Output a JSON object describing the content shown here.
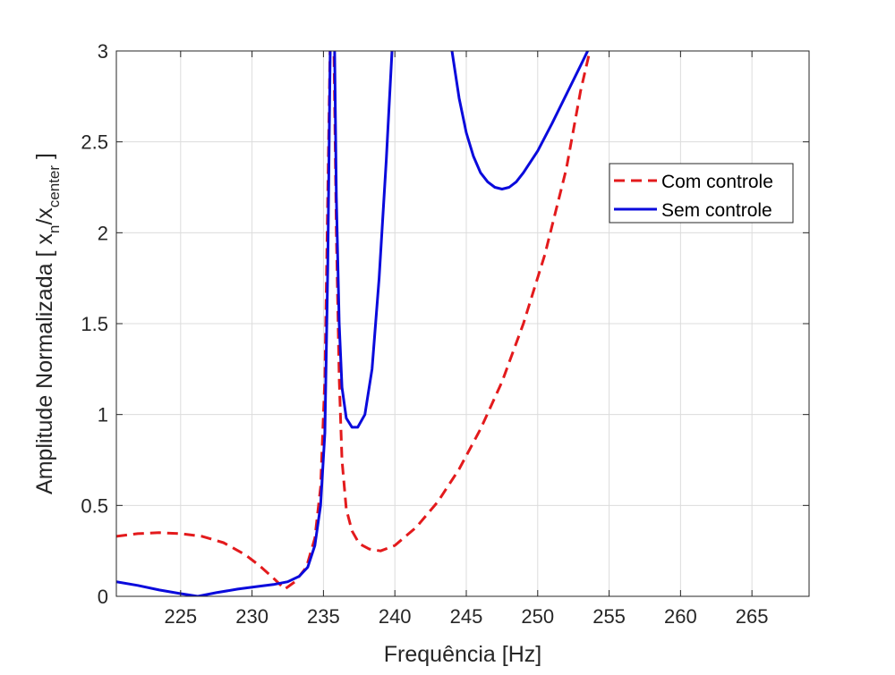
{
  "chart_data": {
    "type": "line",
    "xlabel": "Frequência [Hz]",
    "ylabel_main": "Amplitude Normalizada [ x",
    "ylabel_sub1": "n",
    "ylabel_mid": "/x",
    "ylabel_sub2": "center",
    "ylabel_end": " ]",
    "xlim": [
      220.5,
      269
    ],
    "ylim": [
      0,
      3
    ],
    "xticks": [
      225,
      230,
      235,
      240,
      245,
      250,
      255,
      260,
      265
    ],
    "yticks": [
      0,
      0.5,
      1,
      1.5,
      2,
      2.5,
      3
    ],
    "xtick_labels": [
      "225",
      "230",
      "235",
      "240",
      "245",
      "250",
      "255",
      "260",
      "265"
    ],
    "ytick_labels": [
      "0",
      "0.5",
      "1",
      "1.5",
      "2",
      "2.5",
      "3"
    ],
    "grid": true,
    "legend_position": "top-right",
    "series": [
      {
        "name": "Com controle",
        "color": "#e31a1c",
        "style": "dashed",
        "x": [
          220.5,
          222,
          223.5,
          225,
          226.5,
          228,
          229.5,
          230.5,
          231.5,
          232.3,
          233.0,
          233.8,
          234.4,
          234.8,
          235.1,
          235.3,
          235.5,
          235.7,
          235.9,
          236.1,
          236.3,
          236.6,
          237.0,
          237.5,
          238.2,
          239.0,
          240.0,
          241.5,
          243.0,
          244.5,
          246.0,
          247.5,
          249.0,
          250.5,
          252.0,
          253.0,
          253.8
        ],
        "y": [
          0.33,
          0.345,
          0.35,
          0.345,
          0.33,
          0.295,
          0.23,
          0.17,
          0.1,
          0.04,
          0.08,
          0.16,
          0.32,
          0.6,
          1.2,
          2.2,
          3.2,
          3.2,
          2.0,
          1.2,
          0.75,
          0.48,
          0.36,
          0.29,
          0.26,
          0.25,
          0.28,
          0.38,
          0.52,
          0.7,
          0.92,
          1.18,
          1.5,
          1.88,
          2.35,
          2.78,
          3.05
        ]
      },
      {
        "name": "Sem controle",
        "color": "#0a0adc",
        "style": "solid",
        "x": [
          220.5,
          222,
          223.5,
          225,
          226.2,
          227.5,
          229,
          230.5,
          231.5,
          232.5,
          233.3,
          233.9,
          234.4,
          234.8,
          235.1,
          235.3,
          235.5,
          235.75,
          235.9,
          236.1,
          236.3,
          236.6,
          237.0,
          237.4,
          237.9,
          238.4,
          238.9,
          239.4,
          239.8,
          240.0,
          243.7,
          244,
          244.5,
          245,
          245.5,
          246,
          246.5,
          247,
          247.5,
          248,
          248.5,
          249,
          250,
          251,
          252,
          253,
          253.5
        ],
        "y": [
          0.08,
          0.06,
          0.035,
          0.015,
          0.0,
          0.02,
          0.04,
          0.055,
          0.065,
          0.08,
          0.11,
          0.16,
          0.28,
          0.5,
          0.9,
          1.8,
          3.2,
          3.2,
          2.2,
          1.5,
          1.15,
          0.98,
          0.93,
          0.93,
          1.0,
          1.25,
          1.75,
          2.4,
          3.0,
          3.2,
          3.2,
          3.0,
          2.74,
          2.55,
          2.42,
          2.33,
          2.28,
          2.25,
          2.24,
          2.25,
          2.28,
          2.33,
          2.45,
          2.6,
          2.76,
          2.92,
          3.0
        ]
      }
    ]
  }
}
